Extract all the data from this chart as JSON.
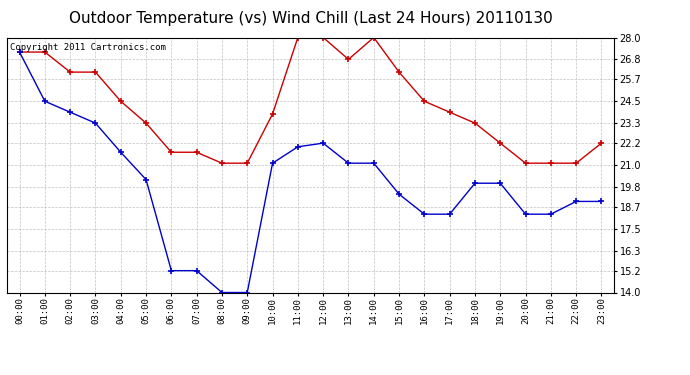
{
  "title": "Outdoor Temperature (vs) Wind Chill (Last 24 Hours) 20110130",
  "copyright_text": "Copyright 2011 Cartronics.com",
  "x_labels": [
    "00:00",
    "01:00",
    "02:00",
    "03:00",
    "04:00",
    "05:00",
    "06:00",
    "07:00",
    "08:00",
    "09:00",
    "10:00",
    "11:00",
    "12:00",
    "13:00",
    "14:00",
    "15:00",
    "16:00",
    "17:00",
    "18:00",
    "19:00",
    "20:00",
    "21:00",
    "22:00",
    "23:00"
  ],
  "red_data": [
    27.2,
    27.2,
    26.1,
    26.1,
    24.5,
    23.3,
    21.7,
    21.7,
    21.1,
    21.1,
    23.8,
    28.0,
    28.0,
    26.8,
    28.0,
    26.1,
    24.5,
    23.9,
    23.3,
    22.2,
    21.1,
    21.1,
    21.1,
    22.2
  ],
  "blue_data": [
    27.2,
    24.5,
    23.9,
    23.3,
    21.7,
    20.2,
    15.2,
    15.2,
    14.0,
    14.0,
    21.1,
    22.0,
    22.2,
    21.1,
    21.1,
    19.4,
    18.3,
    18.3,
    20.0,
    20.0,
    18.3,
    18.3,
    19.0,
    19.0
  ],
  "ylim": [
    14.0,
    28.0
  ],
  "yticks": [
    14.0,
    15.2,
    16.3,
    17.5,
    18.7,
    19.8,
    21.0,
    22.2,
    23.3,
    24.5,
    25.7,
    26.8,
    28.0
  ],
  "red_color": "#cc0000",
  "blue_color": "#0000cc",
  "background_color": "#ffffff",
  "plot_bg_color": "#ffffff",
  "grid_color": "#bbbbbb",
  "title_fontsize": 11,
  "copyright_fontsize": 6.5,
  "tick_fontsize": 7,
  "xtick_fontsize": 6.5
}
